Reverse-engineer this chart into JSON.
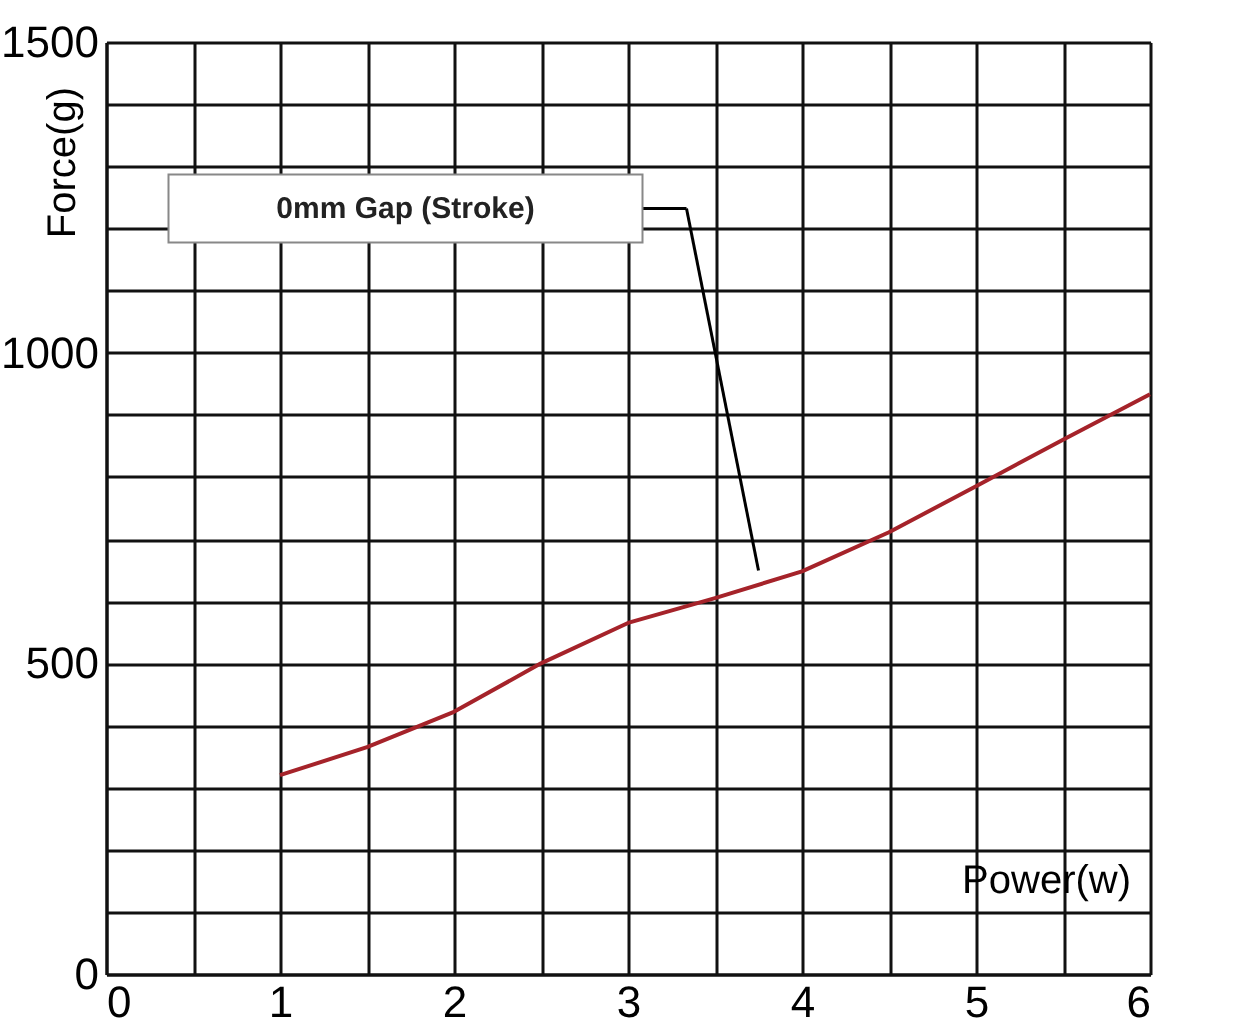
{
  "chart_data": {
    "type": "line",
    "xlabel": "Power(w)",
    "ylabel": "Force(g)",
    "x": [
      1,
      1.5,
      2,
      2.5,
      3,
      3.5,
      4,
      4.5,
      5,
      5.5,
      6
    ],
    "series": [
      {
        "color": "#a5232a",
        "values": [
          320,
          365,
          422,
          500,
          565,
          605,
          648,
          711,
          785,
          860,
          933
        ]
      }
    ],
    "xlim": [
      0,
      6
    ],
    "ylim": [
      0,
      1500
    ],
    "xticks": [
      0,
      {
        "value": 0.5,
        "label": null
      },
      1,
      {
        "value": 1.5,
        "label": null
      },
      2,
      {
        "value": 2.5,
        "label": null
      },
      3,
      {
        "value": 3.5,
        "label": null
      },
      4,
      {
        "value": 4.5,
        "label": null
      },
      5,
      {
        "value": 5.5,
        "label": null
      },
      6
    ],
    "yticks": [
      0,
      {
        "value": 100,
        "label": null
      },
      {
        "value": 200,
        "label": null
      },
      {
        "value": 300,
        "label": null
      },
      {
        "value": 400,
        "label": null
      },
      500,
      {
        "value": 600,
        "label": null
      },
      {
        "value": 700,
        "label": null
      },
      {
        "value": 800,
        "label": null
      },
      {
        "value": 900,
        "label": null
      },
      1000,
      {
        "value": 1100,
        "label": null
      },
      {
        "value": 1200,
        "label": null
      },
      {
        "value": 1300,
        "label": null
      },
      {
        "value": 1400,
        "label": null
      },
      1500
    ],
    "annotations": [
      "0mm Gap (Stroke)"
    ],
    "grid": true,
    "line_style": "solid",
    "marker": "none"
  }
}
